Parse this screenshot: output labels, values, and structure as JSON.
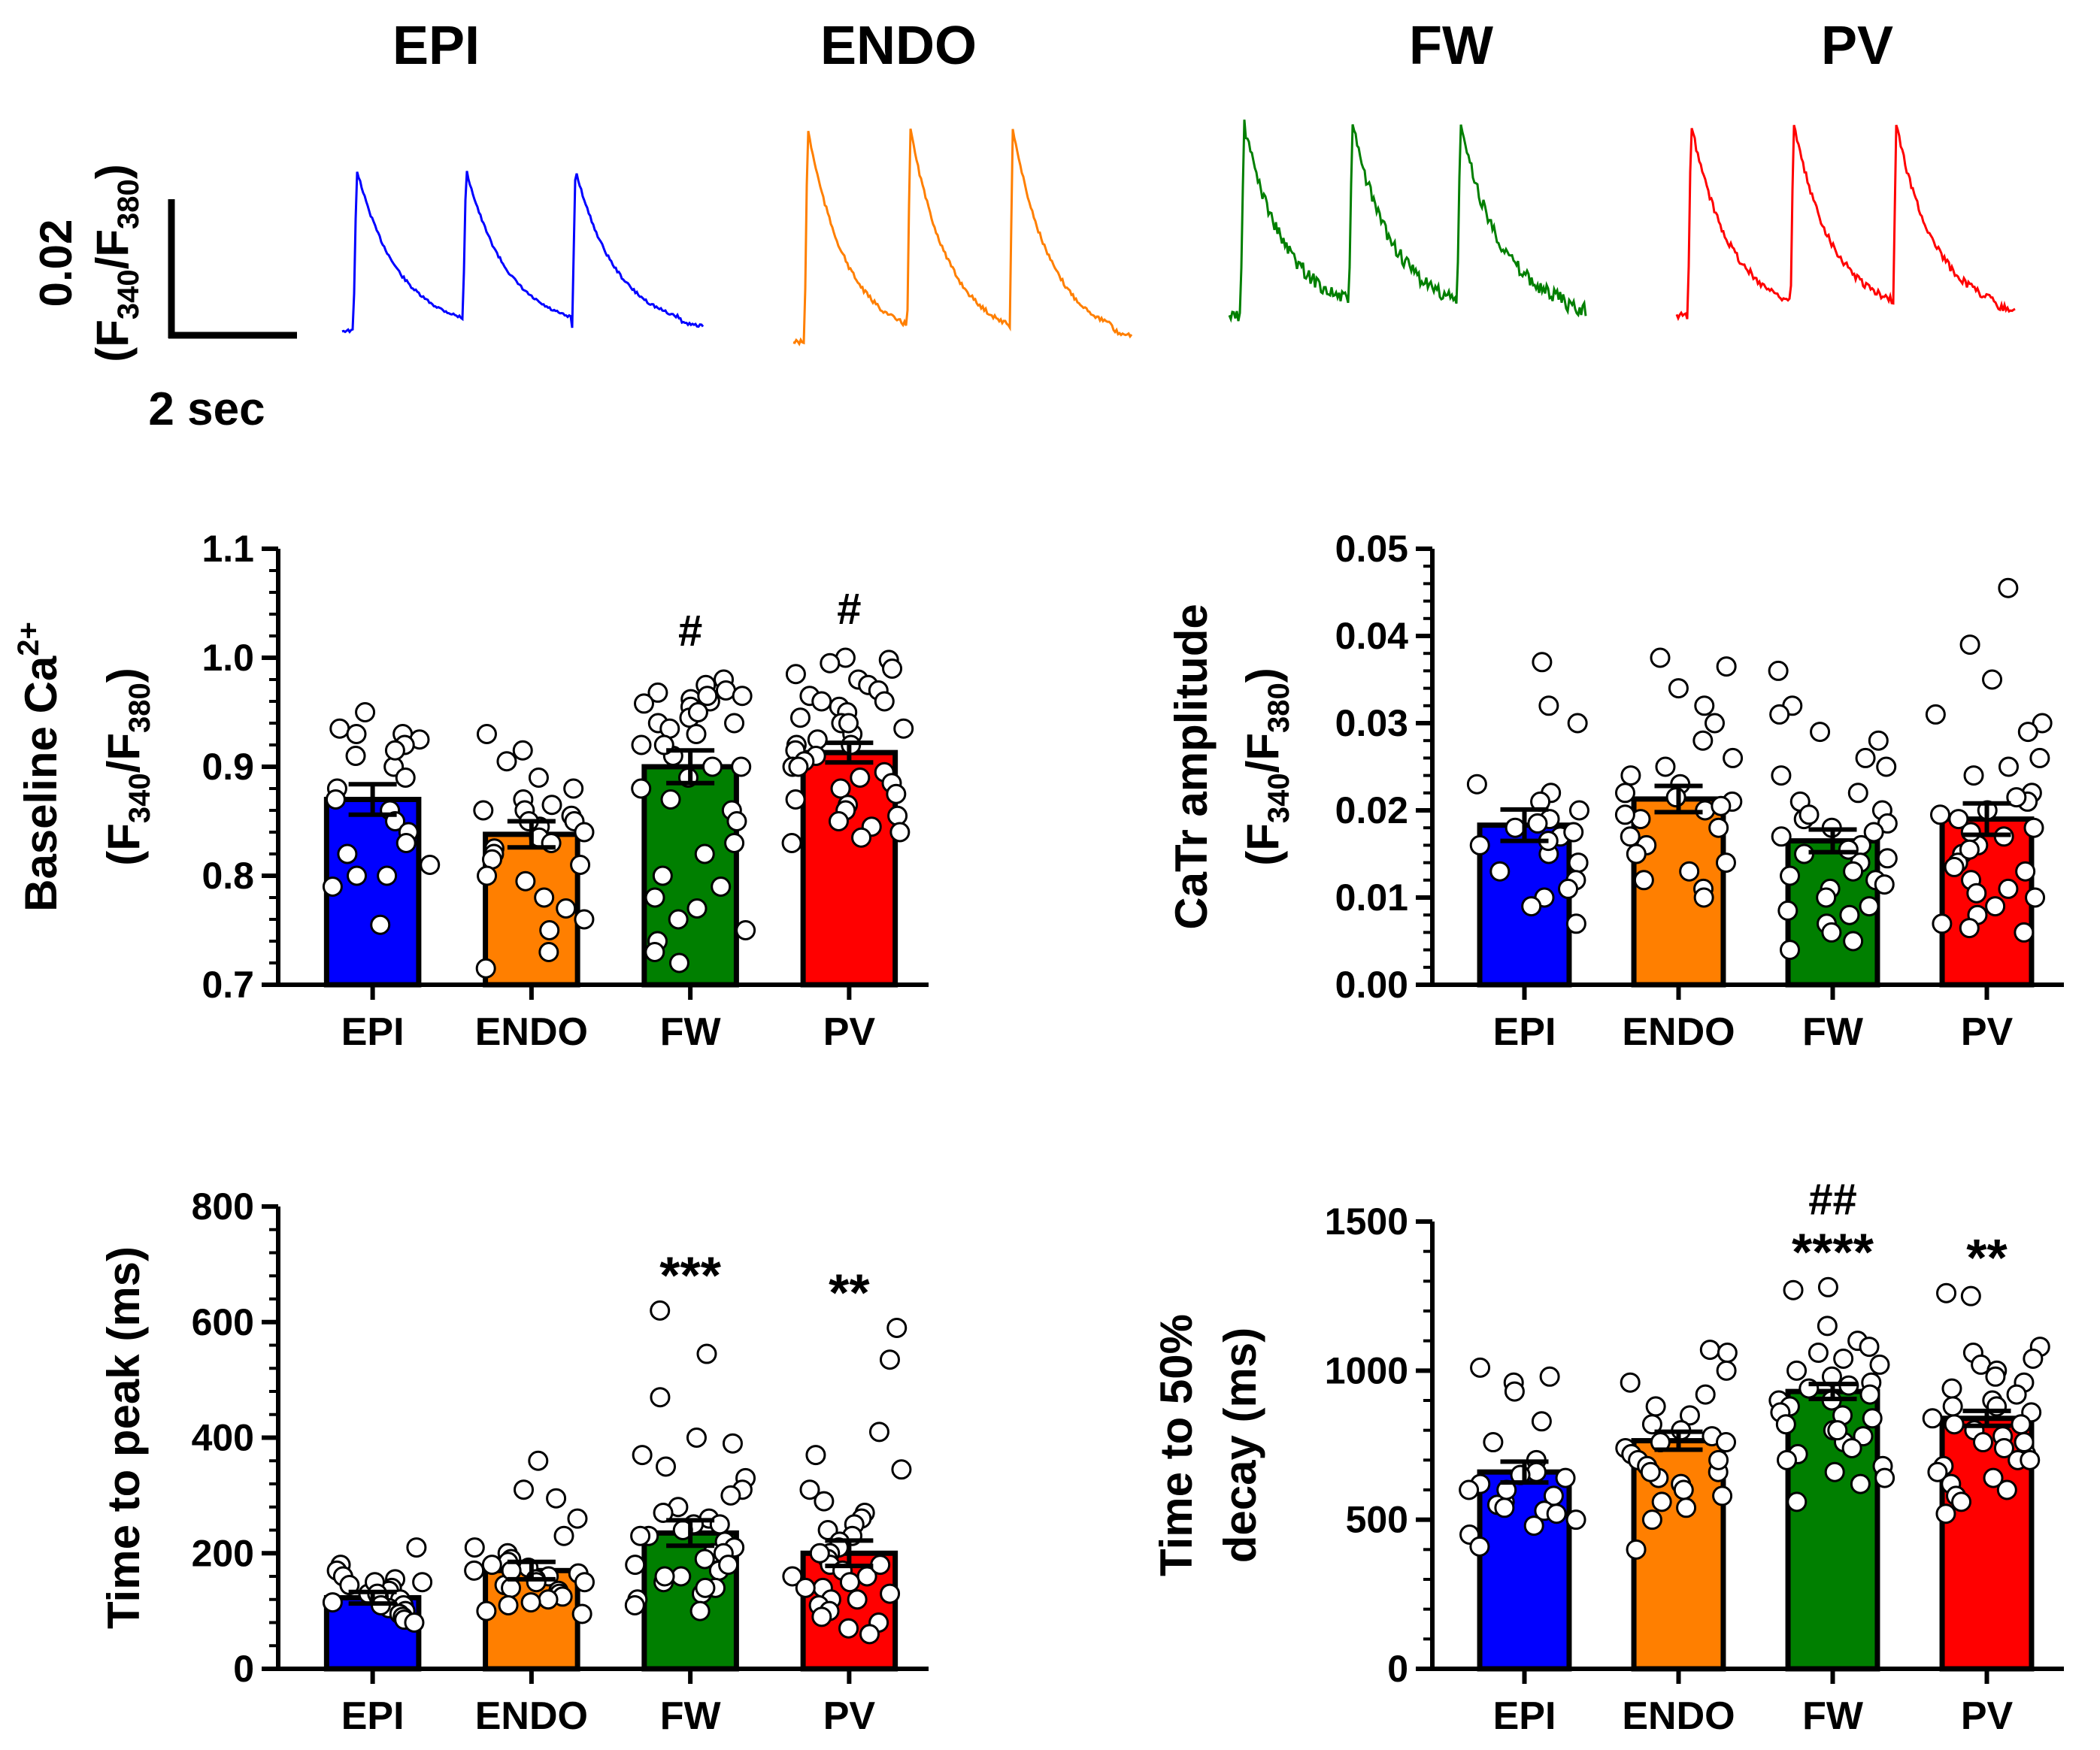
{
  "colors": {
    "EPI": "#0000ff",
    "ENDO": "#ff7f00",
    "FW": "#007f00",
    "PV": "#ff0000",
    "axis": "#000000",
    "point_fill": "#ffffff"
  },
  "traces": {
    "labels": [
      "EPI",
      "ENDO",
      "FW",
      "PV"
    ],
    "scalebar_y_value": "0.02",
    "scalebar_y_unit": "(F340/F380)",
    "scalebar_y_unit_parts": {
      "open": "(F",
      "sub1": "340",
      "slash": "/F",
      "sub2": "380",
      "close": ")"
    },
    "scalebar_x_label": "2 sec"
  },
  "chart_data": [
    {
      "type": "bar",
      "title": "",
      "ylabel_line1": "Baseline Ca",
      "ylabel_sup": "2+",
      "ylabel_line2_parts": {
        "open": "(F",
        "sub1": "340",
        "slash": "/F",
        "sub2": "380",
        "close": ")"
      },
      "categories": [
        "EPI",
        "ENDO",
        "FW",
        "PV"
      ],
      "values": [
        0.87,
        0.838,
        0.9,
        0.913
      ],
      "sem": [
        0.014,
        0.012,
        0.015,
        0.009
      ],
      "ylim": [
        0.7,
        1.1
      ],
      "yticks": [
        0.7,
        0.8,
        0.9,
        1.0,
        1.1
      ],
      "ytick_labels": [
        "0.7",
        "0.8",
        "0.9",
        "1.0",
        "1.1"
      ],
      "annotations": [
        "",
        "",
        "#",
        "#"
      ],
      "points": [
        [
          0.95,
          0.935,
          0.93,
          0.925,
          0.92,
          0.91,
          0.9,
          0.89,
          0.88,
          0.87,
          0.86,
          0.85,
          0.84,
          0.83,
          0.82,
          0.81,
          0.8,
          0.8,
          0.79,
          0.755,
          0.93,
          0.915
        ],
        [
          0.93,
          0.915,
          0.905,
          0.89,
          0.88,
          0.87,
          0.865,
          0.86,
          0.855,
          0.85,
          0.845,
          0.84,
          0.835,
          0.83,
          0.825,
          0.82,
          0.815,
          0.81,
          0.8,
          0.795,
          0.78,
          0.77,
          0.76,
          0.75,
          0.73,
          0.715,
          0.85,
          0.86
        ],
        [
          0.98,
          0.975,
          0.97,
          0.968,
          0.965,
          0.962,
          0.96,
          0.958,
          0.955,
          0.95,
          0.945,
          0.94,
          0.935,
          0.93,
          0.92,
          0.91,
          0.9,
          0.89,
          0.88,
          0.87,
          0.86,
          0.85,
          0.83,
          0.82,
          0.8,
          0.79,
          0.78,
          0.77,
          0.76,
          0.75,
          0.74,
          0.73,
          0.72,
          0.965,
          0.95,
          0.94,
          0.92,
          0.9
        ],
        [
          1.0,
          0.998,
          0.995,
          0.99,
          0.985,
          0.98,
          0.975,
          0.97,
          0.965,
          0.96,
          0.955,
          0.95,
          0.945,
          0.94,
          0.935,
          0.93,
          0.925,
          0.92,
          0.915,
          0.91,
          0.905,
          0.9,
          0.895,
          0.89,
          0.885,
          0.88,
          0.875,
          0.87,
          0.865,
          0.86,
          0.855,
          0.85,
          0.845,
          0.84,
          0.835,
          0.83,
          0.92,
          0.94,
          0.96,
          0.9
        ]
      ]
    },
    {
      "type": "bar",
      "title": "",
      "ylabel_line1": "CaTr amplitude",
      "ylabel_sup": "",
      "ylabel_line2_parts": {
        "open": "(F",
        "sub1": "340",
        "slash": "/F",
        "sub2": "380",
        "close": ")"
      },
      "categories": [
        "EPI",
        "ENDO",
        "FW",
        "PV"
      ],
      "values": [
        0.0183,
        0.0213,
        0.0165,
        0.019
      ],
      "sem": [
        0.0018,
        0.0015,
        0.0013,
        0.0018
      ],
      "ylim": [
        0,
        0.05
      ],
      "yticks": [
        0,
        0.01,
        0.02,
        0.03,
        0.04,
        0.05
      ],
      "ytick_labels": [
        "0.00",
        "0.01",
        "0.02",
        "0.03",
        "0.04",
        "0.05"
      ],
      "annotations": [
        "",
        "",
        "",
        ""
      ],
      "points": [
        [
          0.037,
          0.032,
          0.03,
          0.023,
          0.022,
          0.021,
          0.02,
          0.019,
          0.018,
          0.017,
          0.016,
          0.015,
          0.014,
          0.013,
          0.012,
          0.011,
          0.01,
          0.009,
          0.007,
          0.0165,
          0.0175,
          0.0185
        ],
        [
          0.0375,
          0.0365,
          0.034,
          0.032,
          0.03,
          0.028,
          0.026,
          0.025,
          0.024,
          0.023,
          0.022,
          0.021,
          0.02,
          0.019,
          0.018,
          0.017,
          0.016,
          0.015,
          0.014,
          0.013,
          0.012,
          0.011,
          0.01,
          0.0215,
          0.0205,
          0.0195
        ],
        [
          0.036,
          0.032,
          0.031,
          0.029,
          0.028,
          0.026,
          0.025,
          0.024,
          0.022,
          0.021,
          0.02,
          0.019,
          0.018,
          0.017,
          0.016,
          0.015,
          0.014,
          0.013,
          0.012,
          0.011,
          0.01,
          0.009,
          0.008,
          0.007,
          0.006,
          0.005,
          0.004,
          0.0195,
          0.0185,
          0.0175,
          0.0155,
          0.0145,
          0.0125,
          0.0115,
          0.0085
        ],
        [
          0.0455,
          0.039,
          0.035,
          0.031,
          0.03,
          0.029,
          0.026,
          0.025,
          0.024,
          0.022,
          0.021,
          0.02,
          0.019,
          0.018,
          0.017,
          0.016,
          0.015,
          0.014,
          0.013,
          0.012,
          0.011,
          0.01,
          0.009,
          0.008,
          0.007,
          0.0065,
          0.006,
          0.0215,
          0.0195,
          0.0175,
          0.0155,
          0.0135,
          0.0105
        ]
      ]
    },
    {
      "type": "bar",
      "title": "",
      "ylabel_line1": "Time to peak (ms)",
      "ylabel_sup": "",
      "ylabel_line2_parts": null,
      "categories": [
        "EPI",
        "ENDO",
        "FW",
        "PV"
      ],
      "values": [
        123,
        170,
        235,
        200
      ],
      "sem": [
        10,
        15,
        22,
        22
      ],
      "ylim": [
        0,
        800
      ],
      "yticks": [
        0,
        200,
        400,
        600,
        800
      ],
      "ytick_labels": [
        "0",
        "200",
        "400",
        "600",
        "800"
      ],
      "annotations": [
        "",
        "",
        "***",
        "**"
      ],
      "points": [
        [
          210,
          180,
          170,
          160,
          155,
          150,
          145,
          140,
          135,
          130,
          125,
          120,
          115,
          110,
          105,
          100,
          95,
          90,
          85,
          80,
          150,
          130,
          110
        ],
        [
          360,
          310,
          295,
          260,
          230,
          210,
          200,
          190,
          185,
          180,
          175,
          170,
          165,
          160,
          155,
          150,
          145,
          140,
          135,
          130,
          125,
          120,
          115,
          110,
          100,
          95,
          170,
          150
        ],
        [
          620,
          545,
          470,
          400,
          390,
          370,
          350,
          330,
          310,
          300,
          280,
          270,
          260,
          250,
          240,
          230,
          220,
          210,
          200,
          190,
          180,
          170,
          160,
          150,
          140,
          130,
          120,
          110,
          100,
          250,
          230,
          200,
          180,
          160,
          140
        ],
        [
          590,
          535,
          410,
          370,
          345,
          310,
          290,
          270,
          260,
          250,
          240,
          230,
          220,
          210,
          200,
          190,
          180,
          170,
          160,
          150,
          140,
          130,
          120,
          110,
          100,
          90,
          80,
          70,
          60,
          200,
          180,
          160,
          140,
          120
        ]
      ]
    },
    {
      "type": "bar",
      "title": "",
      "ylabel_line1": "Time to 50%",
      "ylabel_line1b": "decay (ms)",
      "ylabel_sup": "",
      "ylabel_line2_parts": null,
      "categories": [
        "EPI",
        "ENDO",
        "FW",
        "PV"
      ],
      "values": [
        660,
        765,
        930,
        840
      ],
      "sem": [
        35,
        30,
        25,
        25
      ],
      "ylim": [
        0,
        1500
      ],
      "yticks": [
        0,
        500,
        1000,
        1500
      ],
      "ytick_labels": [
        "0",
        "500",
        "1000",
        "1500"
      ],
      "annotations": [
        "",
        "",
        "##\n****",
        "**"
      ],
      "points": [
        [
          1010,
          980,
          960,
          930,
          830,
          760,
          700,
          660,
          640,
          620,
          600,
          580,
          560,
          550,
          540,
          530,
          520,
          500,
          480,
          450,
          410,
          650,
          600
        ],
        [
          1070,
          1060,
          1000,
          960,
          920,
          880,
          850,
          820,
          800,
          780,
          760,
          740,
          720,
          700,
          680,
          660,
          640,
          620,
          600,
          580,
          560,
          540,
          500,
          400,
          760,
          700,
          660
        ],
        [
          1280,
          1270,
          1150,
          1100,
          1080,
          1060,
          1040,
          1020,
          1000,
          980,
          960,
          940,
          920,
          900,
          880,
          860,
          840,
          820,
          800,
          780,
          760,
          740,
          720,
          700,
          680,
          660,
          640,
          620,
          560,
          950,
          900,
          850,
          800
        ],
        [
          1260,
          1250,
          1080,
          1060,
          1040,
          1020,
          1000,
          980,
          960,
          940,
          920,
          900,
          880,
          860,
          840,
          820,
          800,
          780,
          760,
          740,
          720,
          700,
          680,
          660,
          640,
          620,
          600,
          580,
          560,
          520,
          880,
          820,
          760,
          700
        ]
      ]
    }
  ]
}
